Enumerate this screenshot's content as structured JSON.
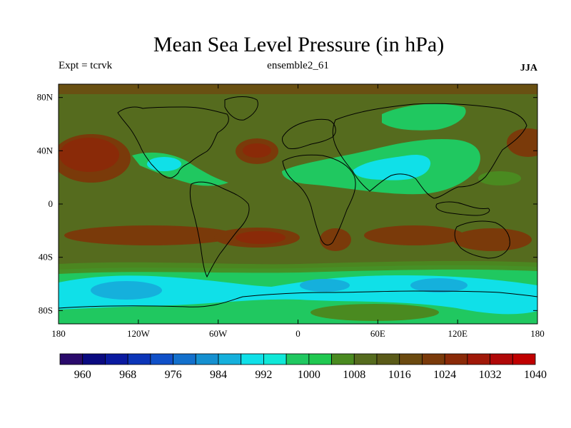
{
  "header": {
    "title": "Mean Sea Level Pressure (in hPa)",
    "experiment": "Expt = tcrvk",
    "ensemble": "ensemble2_61",
    "season": "JJA"
  },
  "map": {
    "lon_range": [
      -180,
      180
    ],
    "lat_range": [
      -90,
      90
    ],
    "x_ticks": [
      {
        "value": -180,
        "label": "180"
      },
      {
        "value": -120,
        "label": "120W"
      },
      {
        "value": -60,
        "label": "60W"
      },
      {
        "value": 0,
        "label": "0"
      },
      {
        "value": 60,
        "label": "60E"
      },
      {
        "value": 120,
        "label": "120E"
      },
      {
        "value": 180,
        "label": "180"
      }
    ],
    "y_ticks": [
      {
        "value": 80,
        "label": "80N"
      },
      {
        "value": 40,
        "label": "40N"
      },
      {
        "value": 0,
        "label": "0"
      },
      {
        "value": -40,
        "label": "40S"
      },
      {
        "value": -80,
        "label": "80S"
      }
    ]
  },
  "colorbar": {
    "colors": [
      "#2a0a6b",
      "#0a0a80",
      "#0a1aa0",
      "#0c35b8",
      "#1050c8",
      "#1370cc",
      "#1590d0",
      "#15b0dc",
      "#10e0e8",
      "#10e8d8",
      "#20c860",
      "#20c850",
      "#4a8a20",
      "#556b1e",
      "#5a5a18",
      "#6b4a10",
      "#7a3a0a",
      "#8a2a08",
      "#a01808",
      "#b00808",
      "#c00000"
    ],
    "labels": [
      {
        "value": 960,
        "label": "960"
      },
      {
        "value": 968,
        "label": "968"
      },
      {
        "value": 976,
        "label": "976"
      },
      {
        "value": 984,
        "label": "984"
      },
      {
        "value": 992,
        "label": "992"
      },
      {
        "value": 1000,
        "label": "1000"
      },
      {
        "value": 1008,
        "label": "1008"
      },
      {
        "value": 1016,
        "label": "1016"
      },
      {
        "value": 1024,
        "label": "1024"
      },
      {
        "value": 1032,
        "label": "1032"
      },
      {
        "value": 1040,
        "label": "1040"
      }
    ]
  },
  "colors": {
    "background_pressure": "#556b1e",
    "high_pressure": "#7a3a0a",
    "high_core": "#8a2a08",
    "low_green": "#20c860",
    "low_mid_green": "#4a8a20",
    "low_cyan": "#10e0e8",
    "low_blue": "#15b0dc",
    "coastline": "#000000"
  }
}
